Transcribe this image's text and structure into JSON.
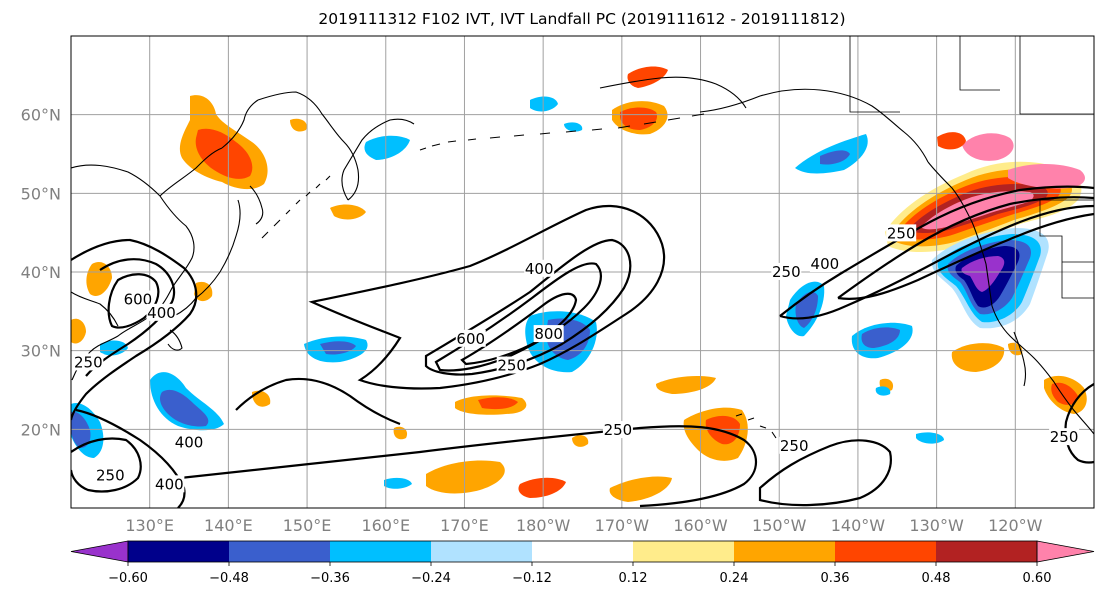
{
  "title": "2019111312 F102 IVT, IVT Landfall PC (2019111612 - 2019111812)",
  "map": {
    "lon_range": [
      120,
      250
    ],
    "lat_range": [
      10,
      70
    ],
    "lat_ticks": [
      {
        "value": 20,
        "label": "20°N"
      },
      {
        "value": 30,
        "label": "30°N"
      },
      {
        "value": 40,
        "label": "40°N"
      },
      {
        "value": 50,
        "label": "50°N"
      },
      {
        "value": 60,
        "label": "60°N"
      }
    ],
    "lon_ticks": [
      {
        "value": 130,
        "label": "130°E"
      },
      {
        "value": 140,
        "label": "140°E"
      },
      {
        "value": 150,
        "label": "150°E"
      },
      {
        "value": 160,
        "label": "160°E"
      },
      {
        "value": 170,
        "label": "170°E"
      },
      {
        "value": 180,
        "label": "180°W"
      },
      {
        "value": 190,
        "label": "170°W"
      },
      {
        "value": 200,
        "label": "160°W"
      },
      {
        "value": 210,
        "label": "150°W"
      },
      {
        "value": 220,
        "label": "140°W"
      },
      {
        "value": 230,
        "label": "130°W"
      },
      {
        "value": 240,
        "label": "120°W"
      }
    ],
    "gridlines": true
  },
  "colorbar": {
    "bounds": [
      -0.72,
      -0.6,
      -0.48,
      -0.36,
      -0.24,
      -0.12,
      0.12,
      0.24,
      0.36,
      0.48,
      0.6,
      0.72
    ],
    "colors": [
      "#9932cc",
      "#00008b",
      "#3a5fcd",
      "#00bfff",
      "#b0e2ff",
      "#ffffff",
      "#ffec8b",
      "#ffa500",
      "#ff4500",
      "#b22222",
      "#ff82ab"
    ],
    "tick_labels": [
      "−0.60",
      "−0.48",
      "−0.36",
      "−0.24",
      "−0.12",
      "0.12",
      "0.24",
      "0.36",
      "0.48",
      "0.60"
    ],
    "extend": "both"
  },
  "contour_labels": [
    {
      "text": "600",
      "lon": 128.5,
      "lat": 36.0
    },
    {
      "text": "400",
      "lon": 131.5,
      "lat": 34.3
    },
    {
      "text": "250",
      "lon": 122.2,
      "lat": 28.0
    },
    {
      "text": "400",
      "lon": 135.0,
      "lat": 17.8
    },
    {
      "text": "250",
      "lon": 125.0,
      "lat": 13.6
    },
    {
      "text": "400",
      "lon": 132.5,
      "lat": 12.5
    },
    {
      "text": "400",
      "lon": 179.5,
      "lat": 39.9
    },
    {
      "text": "600",
      "lon": 170.8,
      "lat": 31.0
    },
    {
      "text": "800",
      "lon": 180.7,
      "lat": 31.6
    },
    {
      "text": "250",
      "lon": 176.0,
      "lat": 27.6
    },
    {
      "text": "250",
      "lon": 189.5,
      "lat": 19.4
    },
    {
      "text": "250",
      "lon": 211.9,
      "lat": 17.4
    },
    {
      "text": "250",
      "lon": 210.9,
      "lat": 39.5
    },
    {
      "text": "400",
      "lon": 215.8,
      "lat": 40.5
    },
    {
      "text": "250",
      "lon": 225.5,
      "lat": 44.4
    },
    {
      "text": "250",
      "lon": 246.2,
      "lat": 18.5
    }
  ]
}
